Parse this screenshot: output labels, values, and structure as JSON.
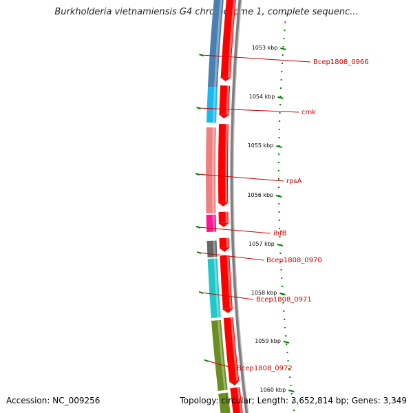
{
  "title": "Burkholderia vietnamiensis G4 chromosome 1, complete sequenc...",
  "accession": "Accession: NC_009256",
  "topology": "Topology: circular; Length: 3,652,814 bp; Genes: 3,349",
  "ticks": [
    {
      "label": "1053 kbp"
    },
    {
      "label": "1054 kbp"
    },
    {
      "label": "1055 kbp"
    },
    {
      "label": "1056 kbp"
    },
    {
      "label": "1057 kbp"
    },
    {
      "label": "1058 kbp"
    },
    {
      "label": "1059 kbp"
    },
    {
      "label": "1060 kbp"
    }
  ],
  "genes": [
    {
      "label": "Bcep1808_0966",
      "color": "#4a7fb0"
    },
    {
      "label": "cmk",
      "color": "#1ab8f0"
    },
    {
      "label": "rpsA",
      "color": "#f08080"
    },
    {
      "label": "ihfB",
      "color": "#ff1493"
    },
    {
      "label": "Bcep1808_0970",
      "color": "#666666"
    },
    {
      "label": "Bcep1808_0971",
      "color": "#20c8c8"
    },
    {
      "label": "Bcep1808_0972",
      "color": "#6b8e23"
    }
  ],
  "colors": {
    "backbone": "#808080",
    "cds_arrow": "#ff0000",
    "tick_mark": "#008000",
    "label_line": "#cc0000"
  }
}
